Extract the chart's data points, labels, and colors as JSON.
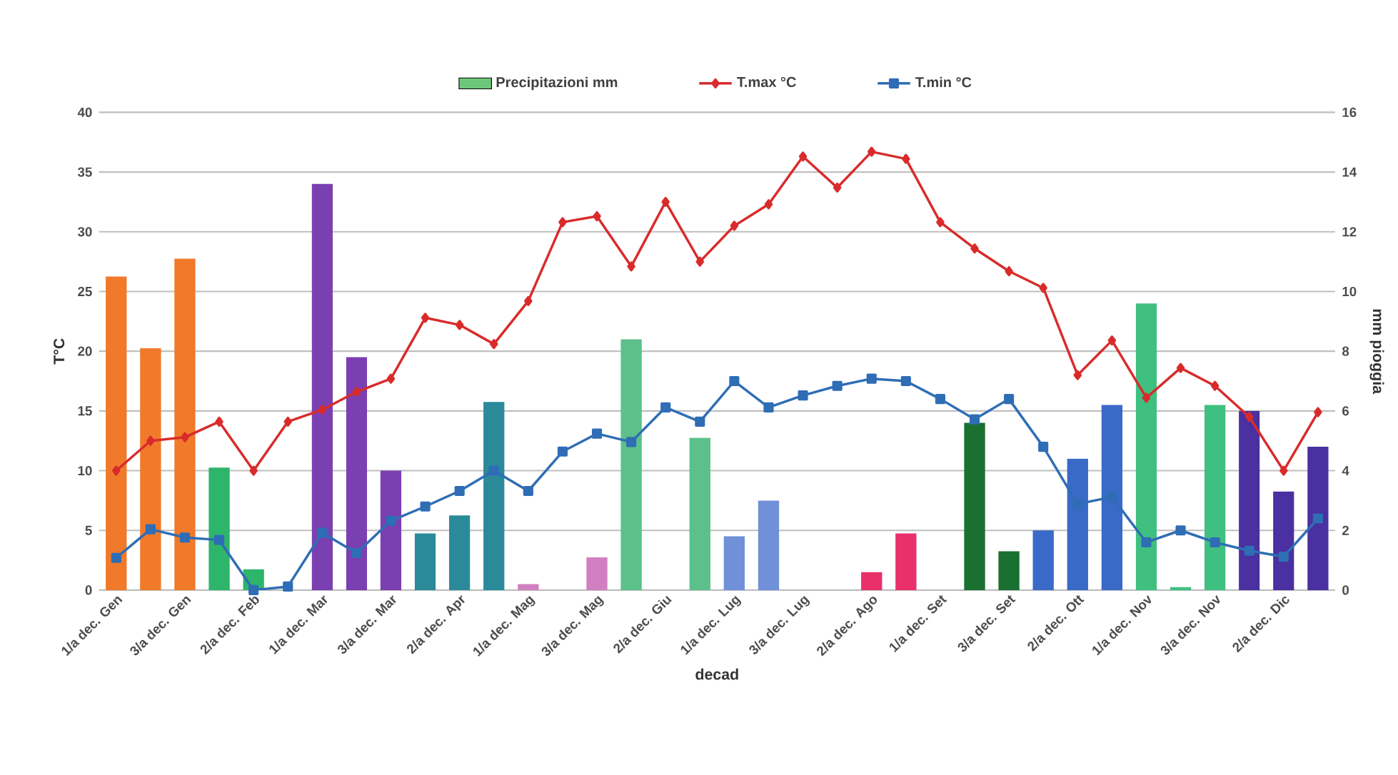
{
  "chart_data": {
    "type": "bar",
    "xlabel": "decad",
    "ylabel": "T°C",
    "y2label": "mm pioggia",
    "categories": [
      "1/a dec. Gen",
      null,
      "3/a dec. Gen",
      null,
      "2/a dec. Feb",
      null,
      "1/a dec. Mar",
      null,
      "3/a dec. Mar",
      null,
      "2/a dec. Apr",
      null,
      "1/a dec. Mag",
      null,
      "3/a dec. Mag",
      null,
      "2/a dec. Giu",
      null,
      "1/a dec. Lug",
      null,
      "3/a dec. Lug",
      null,
      "2/a dec. Ago",
      null,
      "1/a dec. Set",
      null,
      "3/a dec. Set",
      null,
      "2/a dec. Ott",
      null,
      "1/a dec. Nov",
      null,
      "3/a dec. Nov",
      null,
      "2/a dec. Dic",
      null
    ],
    "series": [
      {
        "name": "Precipitazioni mm",
        "axis": "y2",
        "color": "#6cc77a",
        "colors": [
          "#f07a2a",
          "#f07a2a",
          "#f07a2a",
          "#2db56a",
          "#2db56a",
          "#2db56a",
          "#7a3fb0",
          "#7a3fb0",
          "#7a3fb0",
          "#2a8a9a",
          "#2a8a9a",
          "#2a8a9a",
          "#d080c0",
          "#d080c0",
          "#d080c0",
          "#5cc08a",
          "#5cc08a",
          "#5cc08a",
          "#7090d8",
          "#7090d8",
          "#7090d8",
          "#e8306a",
          "#e8306a",
          "#e8306a",
          "#1a7030",
          "#1a7030",
          "#1a7030",
          "#3a6ac8",
          "#3a6ac8",
          "#3a6ac8",
          "#40c080",
          "#40c080",
          "#40c080",
          "#4a30a0",
          "#4a30a0",
          "#4a30a0"
        ],
        "values": [
          10.5,
          8.1,
          11.1,
          4.1,
          0.7,
          0,
          13.6,
          7.8,
          4.0,
          1.9,
          2.5,
          6.3,
          0.2,
          0,
          1.1,
          8.4,
          0,
          5.1,
          1.8,
          3.0,
          0,
          0,
          0.6,
          1.9,
          0,
          5.6,
          1.3,
          2.0,
          4.4,
          6.2,
          9.6,
          0.1,
          6.2,
          6.0,
          3.3,
          4.8
        ]
      },
      {
        "name": "T.max      °C",
        "type": "line",
        "marker": "diamond",
        "color": "#d92b2b",
        "values": [
          10.0,
          12.5,
          12.8,
          14.1,
          10.0,
          14.1,
          15.1,
          16.6,
          17.7,
          22.8,
          22.2,
          20.6,
          24.2,
          30.8,
          31.3,
          27.1,
          32.5,
          27.5,
          30.5,
          32.3,
          36.3,
          33.7,
          36.7,
          36.1,
          30.8,
          28.6,
          26.7,
          25.3,
          18.0,
          20.9,
          16.1,
          18.6,
          17.1,
          14.5,
          10.0,
          14.9
        ]
      },
      {
        "name": "T.min      °C",
        "type": "line",
        "marker": "square",
        "color": "#2f6db5",
        "values": [
          2.7,
          5.1,
          4.4,
          4.2,
          0,
          0.3,
          4.8,
          3.1,
          5.8,
          7.0,
          8.3,
          10.0,
          8.3,
          11.6,
          13.1,
          12.4,
          15.3,
          14.1,
          17.5,
          15.3,
          16.3,
          17.1,
          17.7,
          17.5,
          16.0,
          14.3,
          16.0,
          12.0,
          7.2,
          7.8,
          4.0,
          5.0,
          4.0,
          3.3,
          2.8,
          6.0
        ]
      }
    ],
    "ylim": [
      0,
      40
    ],
    "yticks": [
      0,
      5,
      10,
      15,
      20,
      25,
      30,
      35,
      40
    ],
    "y2lim": [
      0,
      16
    ],
    "y2ticks": [
      0,
      2,
      4,
      6,
      8,
      10,
      12,
      14,
      16
    ],
    "grid": "y",
    "legend": "top"
  }
}
